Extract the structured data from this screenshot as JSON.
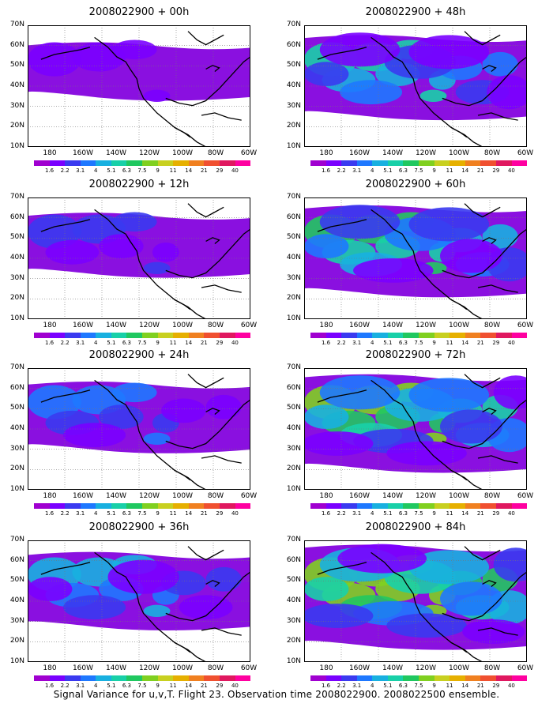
{
  "footer": "Signal Variance for u,v,T. Flight 23. Observation time 2008022900. 2008022500 ensemble.",
  "lat_ticks": [
    "70N",
    "60N",
    "50N",
    "40N",
    "30N",
    "20N",
    "10N"
  ],
  "lon_ticks": [
    "180",
    "160W",
    "140W",
    "120W",
    "100W",
    "80W",
    "60W"
  ],
  "colorbar": {
    "colors": [
      "#a000d0",
      "#7a00ff",
      "#3a3af0",
      "#1e78ff",
      "#18b0e0",
      "#18d0a8",
      "#20c860",
      "#80d020",
      "#c8d020",
      "#e6b000",
      "#f08020",
      "#f05030",
      "#e01860",
      "#ff00a0"
    ],
    "labels": [
      "1.6",
      "2.2",
      "3.1",
      "4",
      "5.1",
      "6.3",
      "7.5",
      "9",
      "11",
      "14",
      "21",
      "29",
      "40"
    ]
  },
  "panels": [
    {
      "title": "2008022900 + 00h",
      "level": 1
    },
    {
      "title": "2008022900 + 12h",
      "level": 2
    },
    {
      "title": "2008022900 + 24h",
      "level": 3
    },
    {
      "title": "2008022900 + 36h",
      "level": 4
    },
    {
      "title": "2008022900 + 48h",
      "level": 5
    },
    {
      "title": "2008022900 + 60h",
      "level": 6
    },
    {
      "title": "2008022900 + 72h",
      "level": 7
    },
    {
      "title": "2008022900 + 84h",
      "level": 8
    }
  ]
}
